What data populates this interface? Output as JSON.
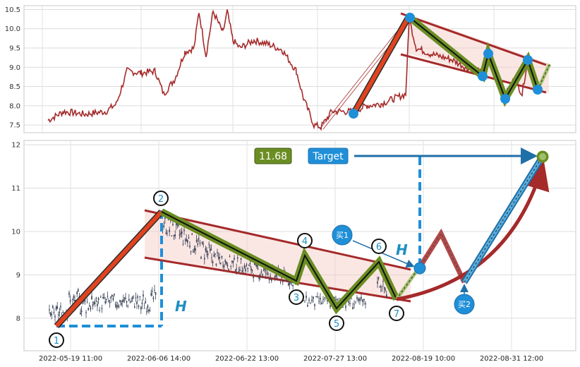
{
  "chart_data": [
    {
      "type": "line",
      "panel": "top",
      "ylim": [
        7.3,
        10.6
      ],
      "yticks": [
        "7.5",
        "8.0",
        "8.5",
        "9.0",
        "9.5",
        "10.0",
        "10.5"
      ],
      "grid": true,
      "series_color": "#a52a2a",
      "pattern_points": [
        {
          "x": 0.0,
          "y": 7.75
        },
        {
          "x": 0.45,
          "y": 10.35
        },
        {
          "x": 0.78,
          "y": 8.78
        },
        {
          "x": 0.84,
          "y": 9.38
        },
        {
          "x": 0.88,
          "y": 8.18
        },
        {
          "x": 0.94,
          "y": 9.25
        },
        {
          "x": 0.97,
          "y": 8.42
        },
        {
          "x": 1.0,
          "y": 9.08
        }
      ]
    },
    {
      "type": "line",
      "panel": "bottom",
      "ylim": [
        7.25,
        12.1
      ],
      "yticks": [
        "8",
        "9",
        "10",
        "11",
        "12"
      ],
      "xticks": [
        "2022-05-19 11:00",
        "2022-06-06 14:00",
        "2022-06-22 13:00",
        "2022-07-27 13:00",
        "2022-08-19 10:00",
        "2022-08-31 12:00"
      ],
      "grid": true,
      "pattern_points": [
        {
          "label": "1",
          "x": 0,
          "y": 7.8
        },
        {
          "label": "2",
          "x": 1,
          "y": 10.38
        },
        {
          "label": "3",
          "x": 2,
          "y": 8.8
        },
        {
          "label": "4",
          "x": 3,
          "y": 9.42
        },
        {
          "label": "5",
          "x": 4,
          "y": 8.2
        },
        {
          "label": "6",
          "x": 5,
          "y": 9.25
        },
        {
          "label": "7",
          "x": 6,
          "y": 8.38
        }
      ],
      "target_value": "11.68",
      "target_label": "Target",
      "height_label": "H",
      "buy_labels": [
        "买1",
        "买2"
      ]
    }
  ]
}
